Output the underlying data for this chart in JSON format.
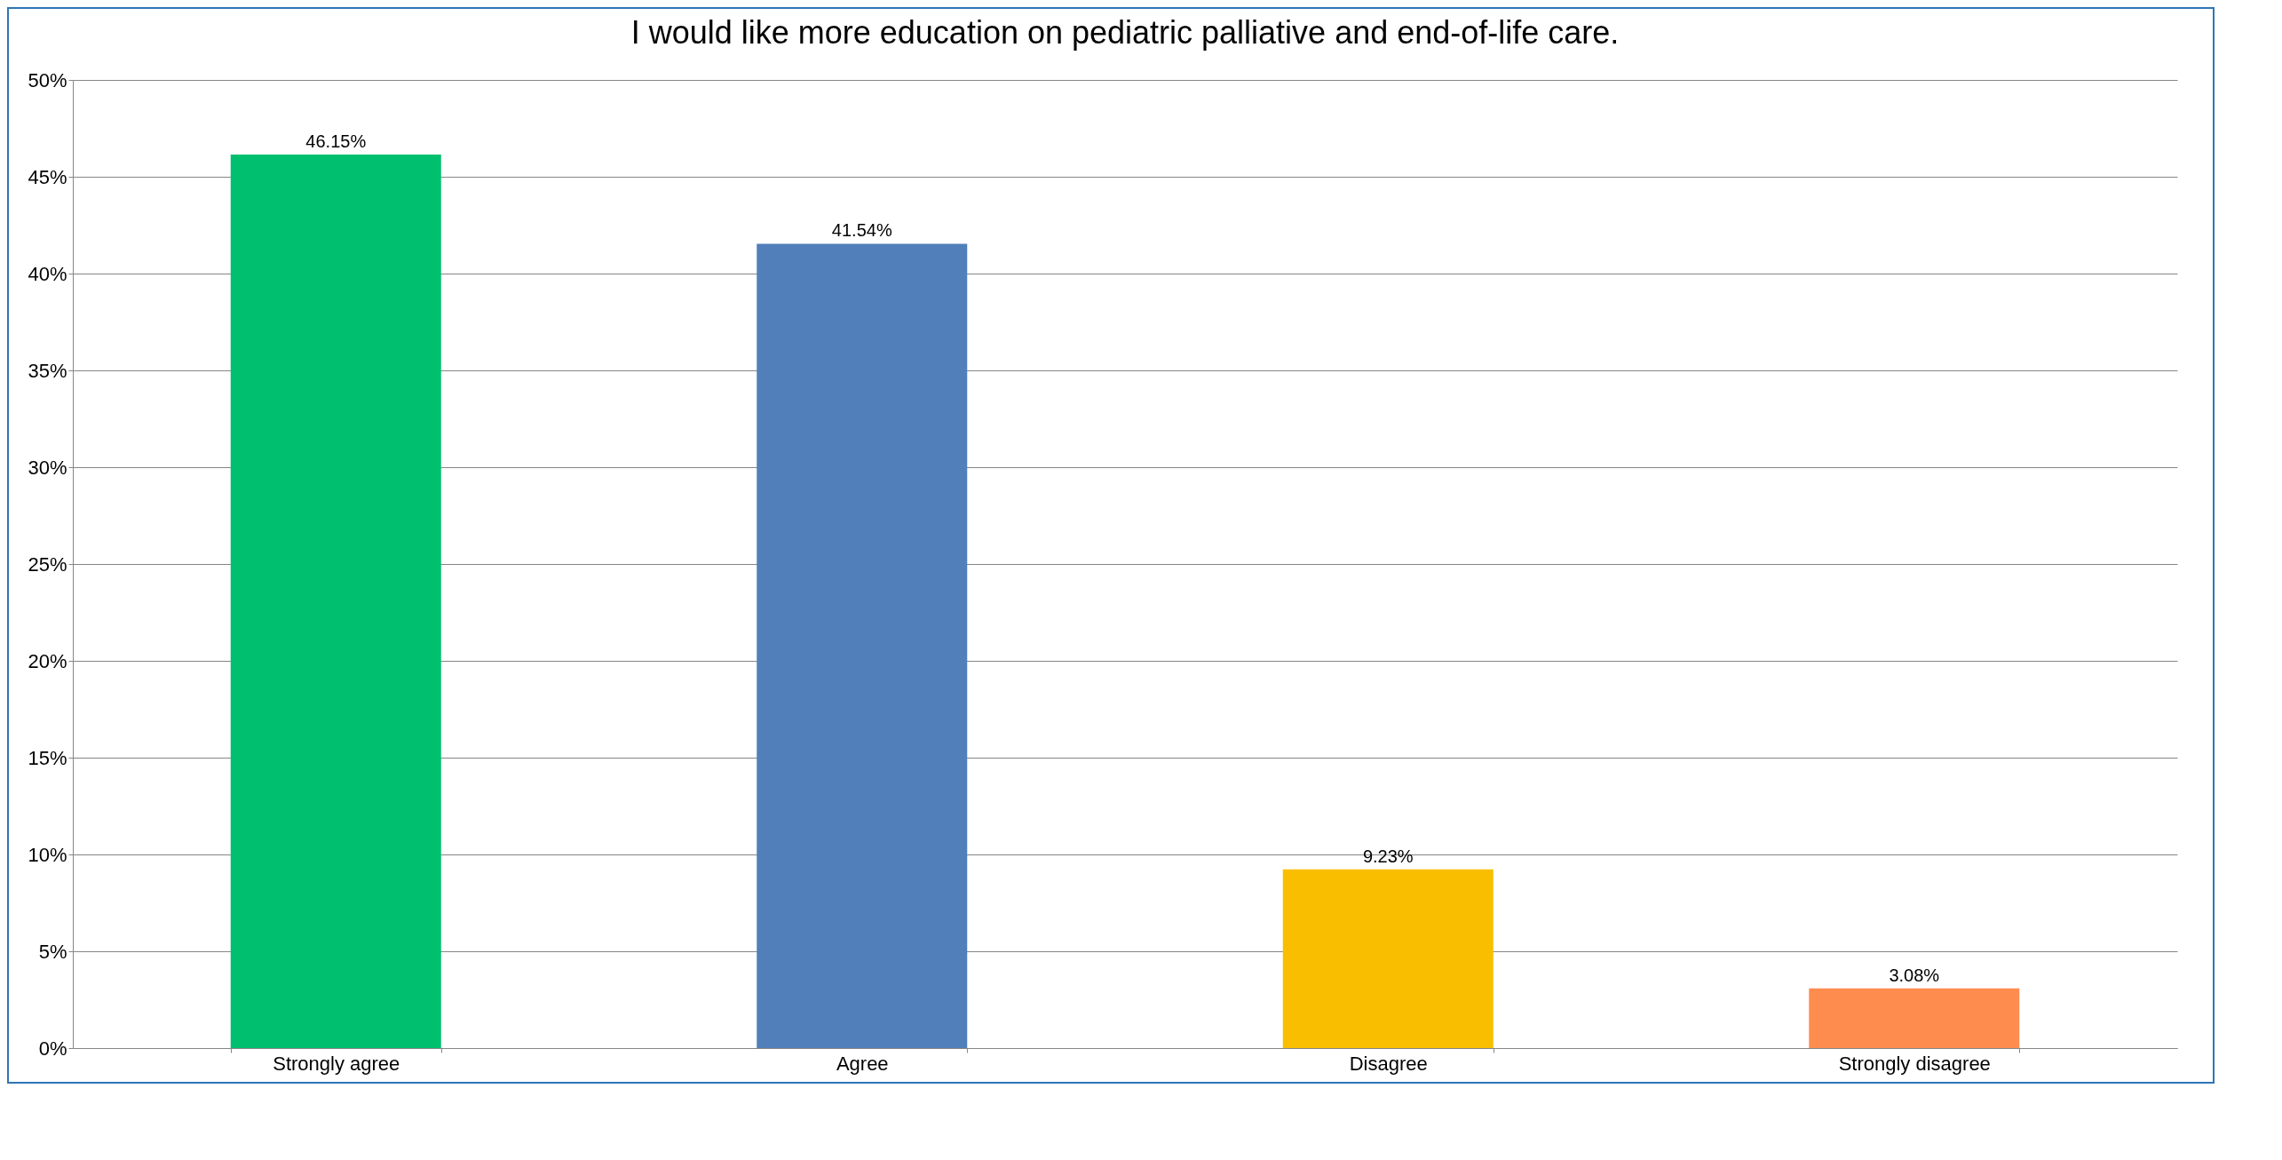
{
  "chart_data": {
    "type": "bar",
    "title": "I would  like more education on pediatric palliative and end-of-life care.",
    "categories": [
      "Strongly agree",
      "Agree",
      "Disagree",
      "Strongly disagree"
    ],
    "values": [
      46.15,
      41.54,
      9.23,
      3.08
    ],
    "colors": [
      "#00bf6f",
      "#507fba",
      "#f9be00",
      "#ff8c4f"
    ],
    "value_labels": [
      "46.15%",
      "41.54%",
      "9.23%",
      "3.08%"
    ],
    "ylim": [
      0,
      50
    ],
    "yticks": [
      {
        "value": 0,
        "label": "0%"
      },
      {
        "value": 5,
        "label": "5%"
      },
      {
        "value": 10,
        "label": "10%"
      },
      {
        "value": 15,
        "label": "15%"
      },
      {
        "value": 20,
        "label": "20%"
      },
      {
        "value": 25,
        "label": "25%"
      },
      {
        "value": 30,
        "label": "30%"
      },
      {
        "value": 35,
        "label": "35%"
      },
      {
        "value": 40,
        "label": "40%"
      },
      {
        "value": 45,
        "label": "45%"
      },
      {
        "value": 50,
        "label": "50%"
      }
    ],
    "grid": "y",
    "legend": false
  }
}
